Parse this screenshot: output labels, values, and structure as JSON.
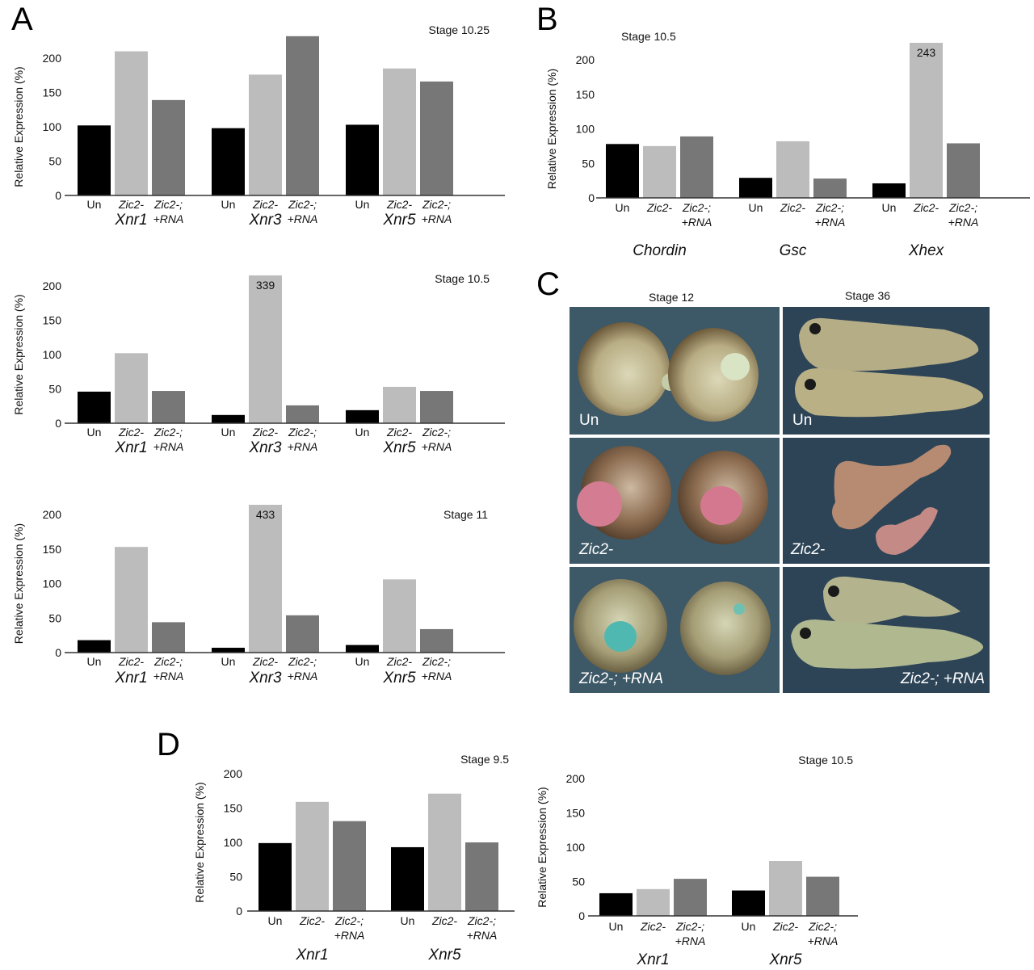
{
  "panels": {
    "A": "A",
    "B": "B",
    "C": "C",
    "D": "D"
  },
  "colors": {
    "Un": "#000000",
    "Zic2-": "#bcbcbc",
    "Zic2-;+RNA": "#777777",
    "axis": "#333333"
  },
  "chart_data": [
    {
      "id": "A1",
      "type": "bar",
      "title": "Stage 10.25",
      "ylabel": "Relative Expression (%)",
      "ylim": [
        0,
        225
      ],
      "yticks": [
        0,
        50,
        100,
        150,
        200
      ],
      "categories": [
        "Xnr1",
        "Xnr3",
        "Xnr5"
      ],
      "conditions": [
        {
          "line1": "Un",
          "line2": "",
          "italic": false
        },
        {
          "line1": "Zic2-",
          "line2": "",
          "italic": true
        },
        {
          "line1": "Zic2-;",
          "line2": "+RNA",
          "italic": true
        }
      ],
      "series": [
        {
          "name": "Un",
          "values": [
            102,
            98,
            103
          ]
        },
        {
          "name": "Zic2-",
          "values": [
            210,
            176,
            185
          ]
        },
        {
          "name": "Zic2-;+RNA",
          "values": [
            139,
            232,
            166
          ]
        }
      ],
      "annotations": []
    },
    {
      "id": "A2",
      "type": "bar",
      "title": "Stage 10.5",
      "ylabel": "Relative Expression (%)",
      "ylim": [
        0,
        225
      ],
      "yticks": [
        0,
        50,
        100,
        150,
        200
      ],
      "categories": [
        "Xnr1",
        "Xnr3",
        "Xnr5"
      ],
      "conditions": [
        {
          "line1": "Un",
          "line2": "",
          "italic": false
        },
        {
          "line1": "Zic2-",
          "line2": "",
          "italic": true
        },
        {
          "line1": "Zic2-;",
          "line2": "+RNA",
          "italic": true
        }
      ],
      "series": [
        {
          "name": "Un",
          "values": [
            46,
            12,
            19
          ]
        },
        {
          "name": "Zic2-",
          "values": [
            102,
            339,
            53
          ]
        },
        {
          "name": "Zic2-;+RNA",
          "values": [
            47,
            26,
            47
          ]
        }
      ],
      "annotations": [
        {
          "category": "Xnr3",
          "series": "Zic2-",
          "text": "339"
        }
      ]
    },
    {
      "id": "A3",
      "type": "bar",
      "title": "Stage 11",
      "ylabel": "Relative Expression (%)",
      "ylim": [
        0,
        225
      ],
      "yticks": [
        0,
        50,
        100,
        150,
        200
      ],
      "categories": [
        "Xnr1",
        "Xnr3",
        "Xnr5"
      ],
      "conditions": [
        {
          "line1": "Un",
          "line2": "",
          "italic": false
        },
        {
          "line1": "Zic2-",
          "line2": "",
          "italic": true
        },
        {
          "line1": "Zic2-;",
          "line2": "+RNA",
          "italic": true
        }
      ],
      "series": [
        {
          "name": "Un",
          "values": [
            18,
            7,
            11
          ]
        },
        {
          "name": "Zic2-",
          "values": [
            153,
            433,
            106
          ]
        },
        {
          "name": "Zic2-;+RNA",
          "values": [
            44,
            54,
            34
          ]
        }
      ],
      "annotations": [
        {
          "category": "Xnr3",
          "series": "Zic2-",
          "text": "433"
        }
      ]
    },
    {
      "id": "B",
      "type": "bar",
      "title": "Stage 10.5",
      "ylabel": "Relative Expression (%)",
      "ylim": [
        0,
        225
      ],
      "yticks": [
        0,
        50,
        100,
        150,
        200
      ],
      "categories": [
        "Chordin",
        "Gsc",
        "Xhex"
      ],
      "conditions": [
        {
          "line1": "Un",
          "line2": "",
          "italic": false
        },
        {
          "line1": "Zic2-",
          "line2": "",
          "italic": true
        },
        {
          "line1": "Zic2-;",
          "line2": "+RNA",
          "italic": true
        }
      ],
      "series": [
        {
          "name": "Un",
          "values": [
            78,
            29,
            21
          ]
        },
        {
          "name": "Zic2-",
          "values": [
            75,
            82,
            243
          ]
        },
        {
          "name": "Zic2-;+RNA",
          "values": [
            89,
            28,
            79
          ]
        }
      ],
      "annotations": [
        {
          "category": "Xhex",
          "series": "Zic2-",
          "text": "243"
        }
      ]
    },
    {
      "id": "D1",
      "type": "bar",
      "title": "Stage 9.5",
      "ylabel": "Relative Expression (%)",
      "ylim": [
        0,
        210
      ],
      "yticks": [
        0,
        50,
        100,
        150,
        200
      ],
      "categories": [
        "Xnr1",
        "Xnr5"
      ],
      "conditions": [
        {
          "line1": "Un",
          "line2": "",
          "italic": false
        },
        {
          "line1": "Zic2-",
          "line2": "",
          "italic": true
        },
        {
          "line1": "Zic2-;",
          "line2": "+RNA",
          "italic": true
        }
      ],
      "series": [
        {
          "name": "Un",
          "values": [
            99,
            93
          ]
        },
        {
          "name": "Zic2-",
          "values": [
            159,
            171
          ]
        },
        {
          "name": "Zic2-;+RNA",
          "values": [
            131,
            100
          ]
        }
      ],
      "annotations": []
    },
    {
      "id": "D2",
      "type": "bar",
      "title": "Stage 10.5",
      "ylabel": "Relative Expression (%)",
      "ylim": [
        0,
        210
      ],
      "yticks": [
        0,
        50,
        100,
        150,
        200
      ],
      "categories": [
        "Xnr1",
        "Xnr5"
      ],
      "conditions": [
        {
          "line1": "Un",
          "line2": "",
          "italic": false
        },
        {
          "line1": "Zic2-",
          "line2": "",
          "italic": true
        },
        {
          "line1": "Zic2-;",
          "line2": "+RNA",
          "italic": true
        }
      ],
      "series": [
        {
          "name": "Un",
          "values": [
            33,
            37
          ]
        },
        {
          "name": "Zic2-",
          "values": [
            39,
            80
          ]
        },
        {
          "name": "Zic2-;+RNA",
          "values": [
            54,
            57
          ]
        }
      ],
      "annotations": []
    }
  ],
  "panel_c": {
    "column_headers": [
      "Stage 12",
      "Stage 36"
    ],
    "row_labels": [
      "Un",
      "Zic2-",
      "Zic2-; +RNA"
    ]
  }
}
